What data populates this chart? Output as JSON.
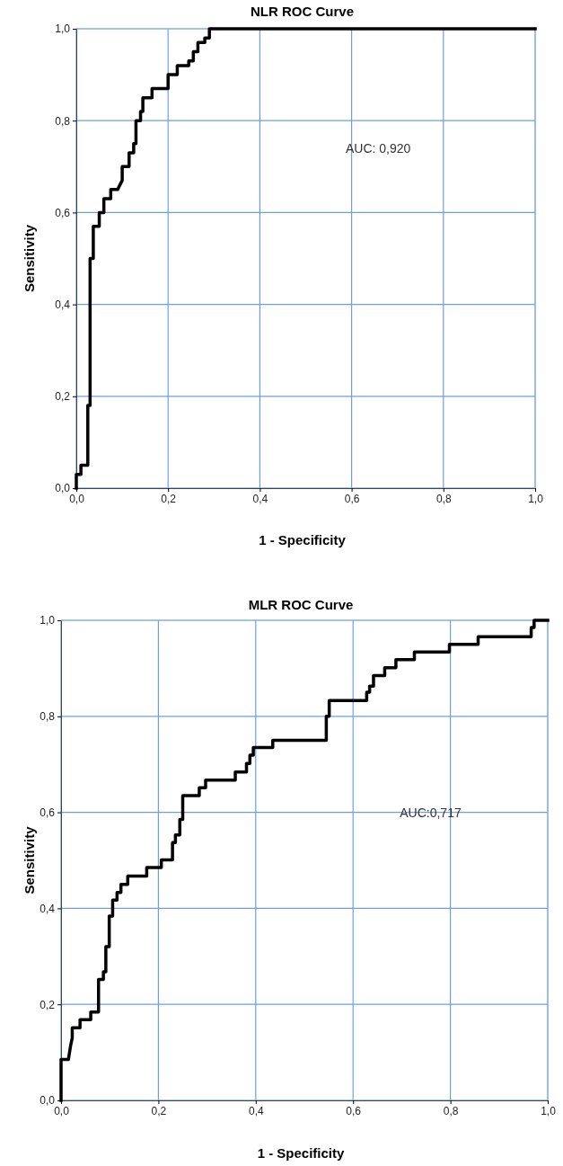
{
  "chart_data": [
    {
      "type": "line",
      "title": "NLR ROC Curve",
      "xlabel": "1 - Specificity",
      "ylabel": "Sensitivity",
      "annotations": [
        "AUC: 0,920"
      ],
      "xlim": [
        0,
        1
      ],
      "ylim": [
        0,
        1
      ],
      "xticks": [
        {
          "value": 0,
          "label": "0,0"
        },
        {
          "value": 0.2,
          "label": "0,2"
        },
        {
          "value": 0.4,
          "label": "0,4"
        },
        {
          "value": 0.6,
          "label": "0,6"
        },
        {
          "value": 0.8,
          "label": "0,8"
        },
        {
          "value": 1,
          "label": "1,0"
        }
      ],
      "yticks": [
        {
          "value": 0,
          "label": "0,0"
        },
        {
          "value": 0.2,
          "label": "0,2"
        },
        {
          "value": 0.4,
          "label": "0,4"
        },
        {
          "value": 0.6,
          "label": "0,6"
        },
        {
          "value": 0.8,
          "label": "0,8"
        },
        {
          "value": 1,
          "label": "1,0"
        }
      ],
      "grid": true,
      "line_style": "solid",
      "marker": "none",
      "series": [
        {
          "color": "#000000",
          "x": [
            0,
            0,
            0.01,
            0.01,
            0.025,
            0.025,
            0.03,
            0.03,
            0.037,
            0.037,
            0.05,
            0.05,
            0.06,
            0.06,
            0.075,
            0.075,
            0.09,
            0.1,
            0.1,
            0.115,
            0.115,
            0.125,
            0.125,
            0.13,
            0.13,
            0.14,
            0.14,
            0.145,
            0.145,
            0.165,
            0.165,
            0.2,
            0.2,
            0.22,
            0.22,
            0.245,
            0.245,
            0.255,
            0.255,
            0.265,
            0.265,
            0.28,
            0.28,
            0.29,
            0.29,
            1
          ],
          "values": [
            0,
            0.03,
            0.03,
            0.05,
            0.05,
            0.18,
            0.18,
            0.5,
            0.5,
            0.57,
            0.57,
            0.6,
            0.6,
            0.63,
            0.63,
            0.65,
            0.65,
            0.67,
            0.7,
            0.7,
            0.73,
            0.73,
            0.75,
            0.75,
            0.8,
            0.8,
            0.82,
            0.82,
            0.85,
            0.85,
            0.87,
            0.87,
            0.9,
            0.9,
            0.92,
            0.92,
            0.93,
            0.93,
            0.95,
            0.95,
            0.97,
            0.97,
            0.98,
            0.98,
            1,
            1
          ]
        }
      ]
    },
    {
      "type": "line",
      "title": "MLR ROC Curve",
      "xlabel": "1 - Specificity",
      "ylabel": "Sensitivity",
      "annotations": [
        "AUC:0,717"
      ],
      "xlim": [
        0,
        1
      ],
      "ylim": [
        0,
        1
      ],
      "xticks": [
        {
          "value": 0,
          "label": "0,0"
        },
        {
          "value": 0.2,
          "label": "0,2"
        },
        {
          "value": 0.4,
          "label": "0,4"
        },
        {
          "value": 0.6,
          "label": "0,6"
        },
        {
          "value": 0.8,
          "label": "0,8"
        },
        {
          "value": 1,
          "label": "1,0"
        }
      ],
      "yticks": [
        {
          "value": 0,
          "label": "0,0"
        },
        {
          "value": 0.2,
          "label": "0,2"
        },
        {
          "value": 0.4,
          "label": "0,4"
        },
        {
          "value": 0.6,
          "label": "0,6"
        },
        {
          "value": 0.8,
          "label": "0,8"
        },
        {
          "value": 1,
          "label": "1,0"
        }
      ],
      "grid": true,
      "line_style": "solid",
      "marker": "none",
      "series": [
        {
          "color": "#000000",
          "x": [
            0,
            0,
            0.015,
            0.02,
            0.023,
            0.023,
            0.039,
            0.039,
            0.061,
            0.061,
            0.077,
            0.077,
            0.087,
            0.087,
            0.092,
            0.092,
            0.099,
            0.099,
            0.106,
            0.106,
            0.115,
            0.115,
            0.123,
            0.123,
            0.137,
            0.137,
            0.176,
            0.176,
            0.206,
            0.206,
            0.229,
            0.229,
            0.235,
            0.235,
            0.244,
            0.244,
            0.25,
            0.25,
            0.284,
            0.284,
            0.297,
            0.297,
            0.358,
            0.358,
            0.381,
            0.381,
            0.388,
            0.388,
            0.395,
            0.395,
            0.435,
            0.435,
            0.545,
            0.545,
            0.551,
            0.551,
            0.628,
            0.628,
            0.634,
            0.634,
            0.642,
            0.642,
            0.665,
            0.665,
            0.688,
            0.688,
            0.726,
            0.726,
            0.798,
            0.798,
            0.857,
            0.857,
            0.966,
            0.966,
            0.972,
            0.972,
            1
          ],
          "values": [
            0,
            0.085,
            0.085,
            0.116,
            0.13,
            0.151,
            0.151,
            0.168,
            0.168,
            0.184,
            0.184,
            0.252,
            0.252,
            0.268,
            0.268,
            0.32,
            0.32,
            0.384,
            0.384,
            0.417,
            0.417,
            0.433,
            0.433,
            0.45,
            0.45,
            0.467,
            0.467,
            0.485,
            0.485,
            0.501,
            0.501,
            0.537,
            0.537,
            0.553,
            0.553,
            0.585,
            0.585,
            0.635,
            0.635,
            0.651,
            0.651,
            0.667,
            0.667,
            0.684,
            0.684,
            0.702,
            0.702,
            0.719,
            0.719,
            0.735,
            0.735,
            0.75,
            0.75,
            0.8,
            0.8,
            0.833,
            0.833,
            0.85,
            0.85,
            0.863,
            0.863,
            0.885,
            0.885,
            0.901,
            0.901,
            0.918,
            0.918,
            0.934,
            0.934,
            0.95,
            0.95,
            0.966,
            0.966,
            0.985,
            0.985,
            1,
            1
          ]
        }
      ]
    }
  ]
}
